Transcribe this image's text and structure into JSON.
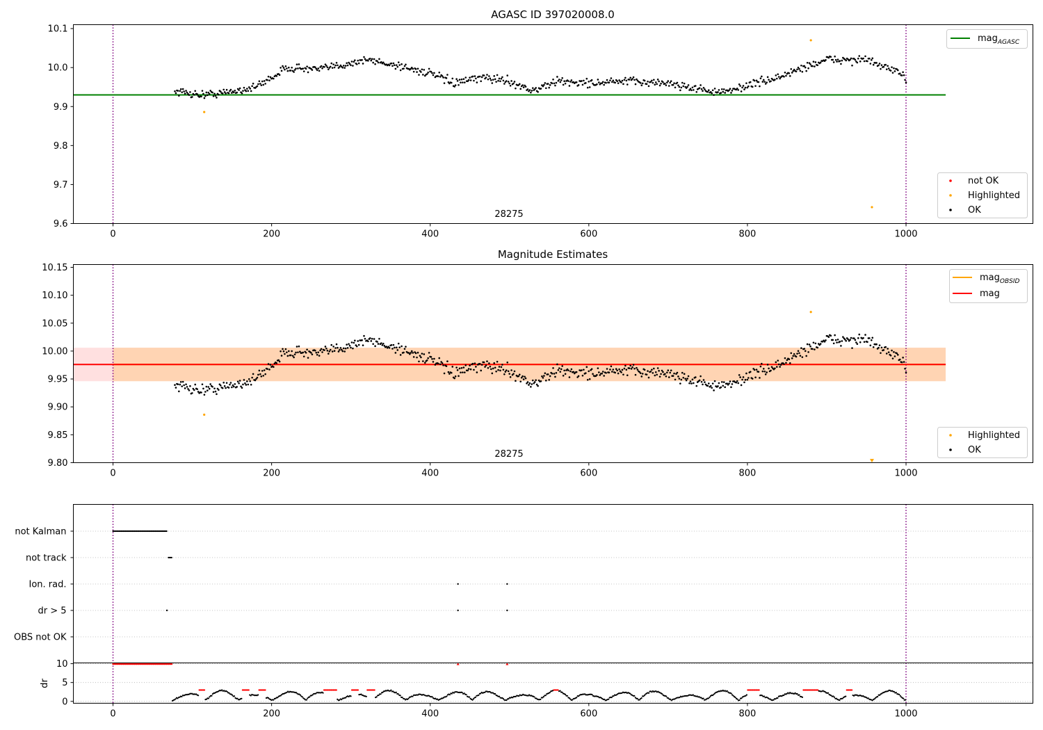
{
  "chart_data": [
    {
      "type": "scatter",
      "title": "AGASC ID 397020008.0",
      "xlim": [
        -50,
        1160
      ],
      "ylim": [
        9.6,
        10.11
      ],
      "xticks": [
        "0",
        "200",
        "400",
        "600",
        "800",
        "1000"
      ],
      "yticks": [
        "9.6",
        "9.7",
        "9.8",
        "9.9",
        "10.0",
        "10.1"
      ],
      "obsid_label": "28275",
      "obsid_boundaries": [
        0,
        1000
      ],
      "mag_agasc": 9.93,
      "mag_agasc_xrange": [
        -50,
        1050
      ],
      "legend_lines": [
        {
          "label": "mag",
          "sub": "AGASC",
          "color": "#008000"
        }
      ],
      "legend_points": [
        {
          "label": "not OK",
          "color": "#ff0000"
        },
        {
          "label": "Highlighted",
          "color": "#ffa500"
        },
        {
          "label": "OK",
          "color": "#000000"
        }
      ],
      "series": [
        {
          "name": "OK",
          "color": "#000000",
          "x_range": [
            78,
            1000
          ],
          "count": 720,
          "trend": [
            [
              78,
              9.94
            ],
            [
              110,
              9.93
            ],
            [
              140,
              9.935
            ],
            [
              180,
              9.95
            ],
            [
              220,
              10.0
            ],
            [
              260,
              9.995
            ],
            [
              320,
              10.02
            ],
            [
              360,
              10.005
            ],
            [
              400,
              9.985
            ],
            [
              430,
              9.96
            ],
            [
              470,
              9.975
            ],
            [
              500,
              9.965
            ],
            [
              530,
              9.94
            ],
            [
              560,
              9.965
            ],
            [
              600,
              9.96
            ],
            [
              650,
              9.965
            ],
            [
              700,
              9.96
            ],
            [
              740,
              9.945
            ],
            [
              770,
              9.935
            ],
            [
              800,
              9.955
            ],
            [
              840,
              9.975
            ],
            [
              870,
              10.0
            ],
            [
              900,
              10.02
            ],
            [
              950,
              10.02
            ],
            [
              980,
              9.995
            ],
            [
              1000,
              9.975
            ]
          ],
          "scatter": 0.017
        },
        {
          "name": "Highlighted",
          "color": "#ffa500",
          "points": [
            [
              115,
              9.886
            ],
            [
              880,
              10.07
            ],
            [
              957,
              9.642
            ]
          ]
        }
      ]
    },
    {
      "type": "scatter",
      "title": "Magnitude Estimates",
      "xlim": [
        -50,
        1160
      ],
      "ylim": [
        9.8,
        10.155
      ],
      "xticks": [
        "0",
        "200",
        "400",
        "600",
        "800",
        "1000"
      ],
      "yticks": [
        "9.80",
        "9.85",
        "9.90",
        "9.95",
        "10.00",
        "10.05",
        "10.10",
        "10.15"
      ],
      "obsid_label": "28275",
      "obsid_boundaries": [
        0,
        1000
      ],
      "mag": 9.976,
      "mag_band": [
        9.946,
        10.006
      ],
      "mag_xrange": [
        -50,
        1050
      ],
      "mag_obsid": 9.976,
      "mag_obsid_band": [
        9.946,
        10.006
      ],
      "mag_obsid_xrange": [
        0,
        1050
      ],
      "legend_lines": [
        {
          "label": "mag",
          "sub": "OBSID",
          "color": "#ffa500"
        },
        {
          "label": "mag",
          "sub": "",
          "color": "#ff0000"
        }
      ],
      "legend_points": [
        {
          "label": "Highlighted",
          "color": "#ffa500"
        },
        {
          "label": "OK",
          "color": "#000000"
        }
      ],
      "series": [
        {
          "name": "OK",
          "color": "#000000",
          "x_range": [
            78,
            1000
          ],
          "count": 720,
          "scatter": 0.017
        },
        {
          "name": "Highlighted",
          "color": "#ffa500",
          "points": [
            [
              115,
              9.886
            ],
            [
              880,
              10.07
            ]
          ]
        },
        {
          "name": "Highlighted-offscale",
          "color": "#ffa500",
          "marker": "triangle-down",
          "points": [
            [
              957,
              9.803
            ]
          ]
        }
      ]
    },
    {
      "type": "scatter",
      "title": "",
      "xlim": [
        -50,
        1160
      ],
      "xticks": [
        "0",
        "200",
        "400",
        "600",
        "800",
        "1000"
      ],
      "flag_categories": [
        "not Kalman",
        "not track",
        "Ion. rad.",
        "dr > 5",
        "OBS not OK"
      ],
      "flags": [
        {
          "name": "not Kalman",
          "ranges": [
            [
              0,
              68
            ]
          ],
          "points": []
        },
        {
          "name": "not track",
          "ranges": [
            [
              70,
              75
            ]
          ],
          "points": []
        },
        {
          "name": "Ion. rad.",
          "ranges": [],
          "points": [
            435,
            497
          ]
        },
        {
          "name": "dr > 5",
          "ranges": [],
          "points": [
            68,
            435,
            497
          ]
        },
        {
          "name": "OBS not OK",
          "ranges": [],
          "points": []
        }
      ],
      "obsid_boundaries": [
        0,
        1000
      ]
    },
    {
      "type": "scatter",
      "title": "",
      "ylabel": "dr",
      "xlim": [
        -50,
        1160
      ],
      "ylim": [
        -0.5,
        10.2
      ],
      "xticks": [
        "0",
        "200",
        "400",
        "600",
        "800",
        "1000"
      ],
      "yticks": [
        "0",
        "5",
        "10"
      ],
      "clip_value": 9.9,
      "clipped_ranges": [
        [
          0,
          75
        ]
      ],
      "clipped_points": [
        435,
        497
      ],
      "dr_x_range": [
        75,
        1000
      ],
      "red_segments": [
        [
          108,
          116
        ],
        [
          163,
          172
        ],
        [
          184,
          193
        ],
        [
          266,
          282
        ],
        [
          300,
          310
        ],
        [
          320,
          330
        ],
        [
          555,
          562
        ],
        [
          800,
          815
        ],
        [
          870,
          890
        ],
        [
          925,
          932
        ]
      ],
      "obsid_boundaries": [
        0,
        1000
      ]
    }
  ]
}
